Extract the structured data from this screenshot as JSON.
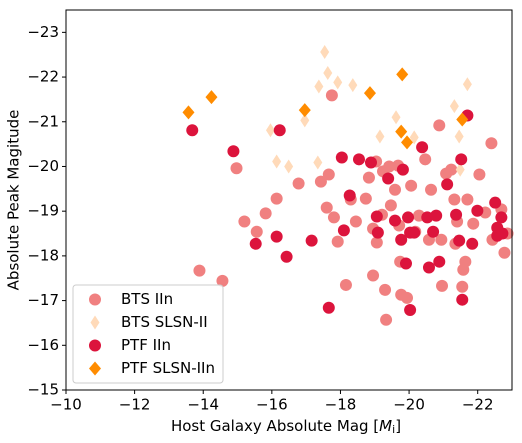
{
  "chart_data": {
    "type": "scatter",
    "xlabel": [
      "Host Galaxy Absolute Mag [",
      "M",
      "i",
      "]"
    ],
    "ylabel": "Absolute Peak Magitude",
    "xlim": [
      -10,
      -23
    ],
    "ylim": [
      -15,
      -23.5
    ],
    "xticks": [
      {
        "value": -10,
        "label": "−10"
      },
      {
        "value": -12,
        "label": "−12"
      },
      {
        "value": -14,
        "label": "−14"
      },
      {
        "value": -16,
        "label": "−16"
      },
      {
        "value": -18,
        "label": "−18"
      },
      {
        "value": -20,
        "label": "−20"
      },
      {
        "value": -22,
        "label": "−22"
      }
    ],
    "yticks": [
      {
        "value": -15,
        "label": "−15"
      },
      {
        "value": -16,
        "label": "−16"
      },
      {
        "value": -17,
        "label": "−17"
      },
      {
        "value": -18,
        "label": "−18"
      },
      {
        "value": -19,
        "label": "−19"
      },
      {
        "value": -20,
        "label": "−20"
      },
      {
        "value": -21,
        "label": "−21"
      },
      {
        "value": -22,
        "label": "−22"
      },
      {
        "value": -23,
        "label": "−23"
      }
    ],
    "legend": "lower left",
    "series": [
      {
        "name": "BTS IIn",
        "color": "#f08080",
        "marker": "o",
        "x": [
          -13.89,
          -14.56,
          -14.97,
          -15.2,
          -15.56,
          -15.82,
          -16.14,
          -16.78,
          -17.43,
          -17.6,
          -17.66,
          -17.75,
          -17.81,
          -17.92,
          -18.16,
          -18.3,
          -18.45,
          -18.74,
          -18.83,
          -18.95,
          -18.95,
          -19.04,
          -19.06,
          -19.21,
          -19.24,
          -19.3,
          -19.33,
          -19.42,
          -19.47,
          -19.59,
          -19.68,
          -19.71,
          -19.74,
          -19.77,
          -19.94,
          -20.06,
          -20.18,
          -20.29,
          -20.47,
          -20.58,
          -20.64,
          -20.88,
          -20.94,
          -20.96,
          -21.08,
          -21.23,
          -21.32,
          -21.35,
          -21.4,
          -21.55,
          -21.58,
          -21.64,
          -21.7,
          -21.87,
          -22.05,
          -22.22,
          -22.4,
          -22.43,
          -22.78,
          -22.87,
          -22.69
        ],
        "values": [
          -17.67,
          -17.44,
          -19.96,
          -18.77,
          -18.54,
          -18.95,
          -19.28,
          -19.62,
          -19.66,
          -19.08,
          -19.82,
          -21.59,
          -18.86,
          -18.32,
          -17.35,
          -19.26,
          -18.77,
          -19.28,
          -19.75,
          -18.61,
          -17.56,
          -20.11,
          -18.3,
          -18.92,
          -19.89,
          -17.24,
          -16.57,
          -20.0,
          -19.13,
          -19.48,
          -20.02,
          -18.68,
          -17.87,
          -17.13,
          -17.06,
          -19.57,
          -18.54,
          -18.9,
          -20.16,
          -18.36,
          -19.48,
          -20.92,
          -18.36,
          -17.33,
          -19.84,
          -19.93,
          -19.26,
          -18.27,
          -18.77,
          -17.31,
          -17.69,
          -17.87,
          -19.26,
          -18.72,
          -19.82,
          -18.97,
          -20.52,
          -18.36,
          -18.07,
          -18.5,
          -19.04
        ]
      },
      {
        "name": "BTS SLSN-II",
        "color": "#ffdab9",
        "marker": "thin_diamond",
        "x": [
          -17.54,
          -17.63,
          -17.37,
          -17.92,
          -15.96,
          -16.14,
          -16.49,
          -16.96,
          -17.34,
          -18.36,
          -19.15,
          -19.62,
          -20.15,
          -21.32,
          -21.46,
          -21.7,
          -21.49
        ],
        "values": [
          -22.56,
          -22.09,
          -21.79,
          -21.88,
          -20.81,
          -20.11,
          -20.0,
          -21.03,
          -20.09,
          -21.82,
          -20.67,
          -21.1,
          -20.65,
          -21.35,
          -20.67,
          -21.84,
          -19.93
        ]
      },
      {
        "name": "PTF IIn",
        "color": "#dc143c",
        "marker": "o",
        "x": [
          -13.68,
          -14.88,
          -16.23,
          -15.53,
          -16.14,
          -16.43,
          -17.16,
          -17.66,
          -18.04,
          -18.1,
          -18.27,
          -18.54,
          -18.89,
          -19.06,
          -19.09,
          -19.39,
          -19.59,
          -19.77,
          -19.91,
          -19.97,
          -20.03,
          -20.03,
          -20.15,
          -20.38,
          -20.53,
          -20.58,
          -20.79,
          -20.88,
          -21.11,
          -21.37,
          -21.46,
          -21.52,
          -21.55,
          -21.7,
          -21.84,
          -21.99,
          -22.51,
          -22.57,
          -22.57,
          -22.69,
          -22.72,
          -19.82,
          -20.7
        ],
        "values": [
          -20.81,
          -20.34,
          -20.81,
          -18.27,
          -18.43,
          -17.98,
          -18.34,
          -16.84,
          -20.2,
          -18.57,
          -19.35,
          -20.16,
          -20.09,
          -18.88,
          -18.52,
          -19.73,
          -18.79,
          -18.36,
          -17.83,
          -18.86,
          -18.52,
          -16.79,
          -18.52,
          -20.43,
          -18.86,
          -17.74,
          -18.9,
          -17.87,
          -19.6,
          -18.92,
          -18.34,
          -20.16,
          -17.02,
          -21.14,
          -18.27,
          -19.01,
          -19.19,
          -18.63,
          -18.45,
          -18.86,
          -18.5,
          -19.93,
          -18.54
        ]
      },
      {
        "name": "PTF SLSN-IIn",
        "color": "#ff8c00",
        "marker": "diamond",
        "x": [
          -13.57,
          -14.24,
          -16.96,
          -18.86,
          -19.8,
          -19.77,
          -19.94,
          -21.55
        ],
        "values": [
          -21.21,
          -21.55,
          -21.26,
          -21.64,
          -22.06,
          -20.78,
          -20.54,
          -21.05
        ]
      }
    ]
  }
}
